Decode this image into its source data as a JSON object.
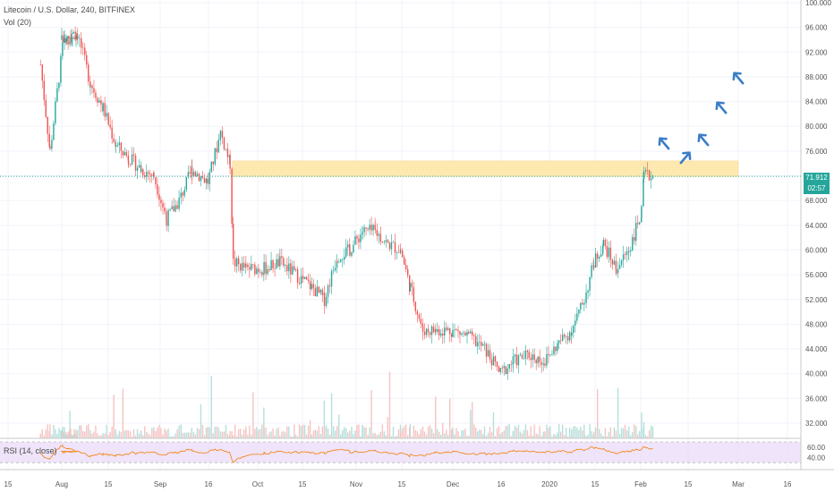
{
  "header": {
    "symbol_line": "Litecoin / U.S. Dollar, 240, BITFINEX",
    "volume_label": "Vol (20)",
    "rsi_label": "RSI (14, close)"
  },
  "price_tags": {
    "last_price": "71.912",
    "countdown": "02:57"
  },
  "colors": {
    "up": "#26a69a",
    "down": "#ef5350",
    "rsi_line": "#f57c00",
    "rsi_band": "#e8d8f7",
    "zone": "#fde9b0",
    "arrow": "#3a7ec6",
    "last_price": "#26a69a"
  },
  "chart_data": {
    "type": "candlestick",
    "title": "Litecoin / U.S. Dollar, 240, BITFINEX",
    "y_ticks": [
      "100.000",
      "96.000",
      "92.000",
      "88.000",
      "84.000",
      "80.000",
      "76.000",
      "72.000",
      "68.000",
      "64.000",
      "60.000",
      "56.000",
      "52.000",
      "48.000",
      "44.000",
      "40.000",
      "36.000",
      "32.000"
    ],
    "y_range": [
      30,
      100
    ],
    "x_ticks": [
      "15",
      "Aug",
      "15",
      "Sep",
      "16",
      "Oct",
      "15",
      "Nov",
      "15",
      "Dec",
      "16",
      "2020",
      "15",
      "Feb",
      "15",
      "Mar",
      "16"
    ],
    "price_path": [
      {
        "t": "Jul 15",
        "p": 90
      },
      {
        "t": "Jul 18",
        "p": 76
      },
      {
        "t": "Jul 22",
        "p": 93
      },
      {
        "t": "Jul 27",
        "p": 95
      },
      {
        "t": "Aug 1",
        "p": 94
      },
      {
        "t": "Aug 6",
        "p": 95
      },
      {
        "t": "Aug 10",
        "p": 87
      },
      {
        "t": "Aug 14",
        "p": 83
      },
      {
        "t": "Aug 18",
        "p": 77
      },
      {
        "t": "Aug 22",
        "p": 75
      },
      {
        "t": "Aug 26",
        "p": 73
      },
      {
        "t": "Aug 30",
        "p": 72
      },
      {
        "t": "Sep 3",
        "p": 65
      },
      {
        "t": "Sep 7",
        "p": 68
      },
      {
        "t": "Sep 11",
        "p": 73
      },
      {
        "t": "Sep 16",
        "p": 71
      },
      {
        "t": "Sep 20",
        "p": 79
      },
      {
        "t": "Sep 23",
        "p": 74
      },
      {
        "t": "Sep 24",
        "p": 58
      },
      {
        "t": "Sep 28",
        "p": 57
      },
      {
        "t": "Oct 3",
        "p": 57
      },
      {
        "t": "Oct 8",
        "p": 58
      },
      {
        "t": "Oct 13",
        "p": 56
      },
      {
        "t": "Oct 18",
        "p": 54
      },
      {
        "t": "Oct 22",
        "p": 52
      },
      {
        "t": "Oct 26",
        "p": 59
      },
      {
        "t": "Oct 30",
        "p": 60
      },
      {
        "t": "Nov 3",
        "p": 63
      },
      {
        "t": "Nov 7",
        "p": 63
      },
      {
        "t": "Nov 11",
        "p": 61
      },
      {
        "t": "Nov 15",
        "p": 60
      },
      {
        "t": "Nov 18",
        "p": 54
      },
      {
        "t": "Nov 22",
        "p": 47
      },
      {
        "t": "Nov 26",
        "p": 47
      },
      {
        "t": "Dec 1",
        "p": 47
      },
      {
        "t": "Dec 6",
        "p": 46
      },
      {
        "t": "Dec 11",
        "p": 44
      },
      {
        "t": "Dec 16",
        "p": 40
      },
      {
        "t": "Dec 20",
        "p": 42
      },
      {
        "t": "Dec 25",
        "p": 43
      },
      {
        "t": "Dec 30",
        "p": 42
      },
      {
        "t": "Jan 4",
        "p": 45
      },
      {
        "t": "Jan 8",
        "p": 47
      },
      {
        "t": "Jan 12",
        "p": 52
      },
      {
        "t": "Jan 15",
        "p": 58
      },
      {
        "t": "Jan 18",
        "p": 61
      },
      {
        "t": "Jan 22",
        "p": 57
      },
      {
        "t": "Jan 26",
        "p": 60
      },
      {
        "t": "Jan 30",
        "p": 66
      },
      {
        "t": "Feb 2",
        "p": 72
      },
      {
        "t": "Feb 5",
        "p": 71.912
      }
    ],
    "horizontal_line": 71.912,
    "resistance_zone": [
      71.9,
      74.4
    ],
    "projection_arrows": 5,
    "volume_panel": true,
    "rsi": {
      "ticks": [
        "60.00",
        "40.00"
      ],
      "band": [
        30,
        70
      ],
      "range": [
        20,
        70
      ]
    },
    "grid": true,
    "legend": "top-left"
  }
}
